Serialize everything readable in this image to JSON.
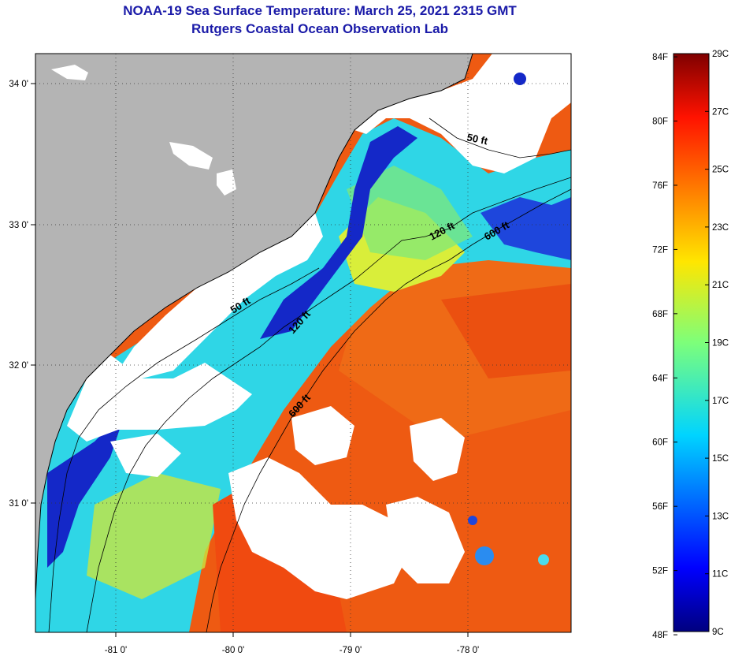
{
  "header": {
    "title": "NOAA-19 Sea Surface Temperature:  March 25, 2021 2315 GMT",
    "subtitle": "Rutgers Coastal Ocean Observation Lab"
  },
  "map": {
    "lon_range": [
      -81.55,
      -77.0
    ],
    "lat_range": [
      30.2,
      34.2
    ],
    "lon_ticks": [
      "-81 0'",
      "-80 0'",
      "-79 0'",
      "-78 0'"
    ],
    "lat_ticks": [
      "34 0'",
      "33 0'",
      "32 0'",
      "31 0'"
    ],
    "contour_labels": [
      "50 ft",
      "120 ft",
      "600 ft",
      "50 ft",
      "120 ft",
      "600 ft"
    ],
    "land_color": "#b4b4b4",
    "cloud_color": "#ffffff"
  },
  "colorbar": {
    "f_labels": [
      "84F",
      "80F",
      "76F",
      "72F",
      "68F",
      "64F",
      "60F",
      "56F",
      "52F",
      "48F"
    ],
    "c_labels": [
      "29C",
      "27C",
      "25C",
      "23C",
      "21C",
      "19C",
      "17C",
      "15C",
      "13C",
      "11C",
      "9C"
    ],
    "range_c": [
      9,
      29
    ],
    "colormap": "jet"
  }
}
